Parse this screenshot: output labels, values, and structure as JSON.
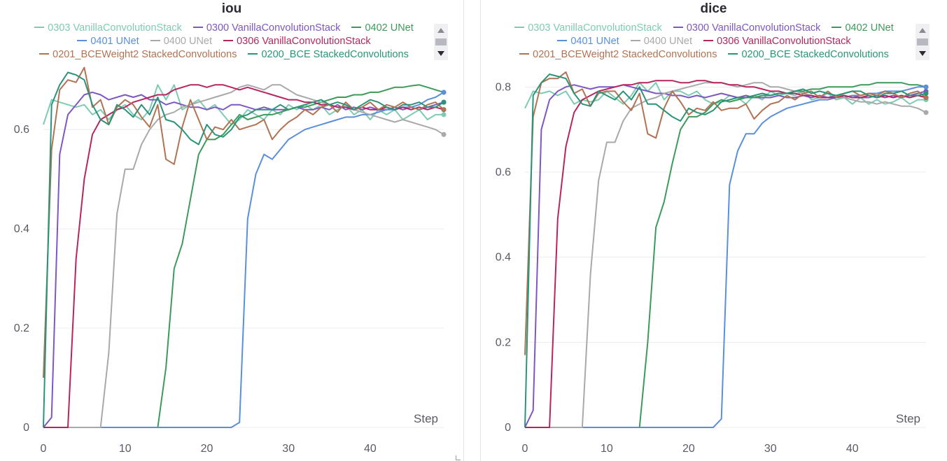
{
  "chart_data": [
    {
      "type": "line",
      "title": "iou",
      "xlabel": "Step",
      "ylabel": "",
      "xlim": [
        0,
        49
      ],
      "ylim": [
        0,
        0.72
      ],
      "xticks": [
        0,
        10,
        20,
        30,
        40
      ],
      "yticks": [
        0,
        0.2,
        0.4,
        0.6
      ],
      "grid": true,
      "legend_position": "top",
      "series": [
        {
          "name": "0303 VanillaConvolutionStack",
          "color": "#7ecbb3",
          "values": [
            0.61,
            0.66,
            0.655,
            0.65,
            0.645,
            0.65,
            0.63,
            0.64,
            0.62,
            0.64,
            0.65,
            0.63,
            0.62,
            0.64,
            0.69,
            0.66,
            0.69,
            0.64,
            0.65,
            0.66,
            0.64,
            0.65,
            0.63,
            0.61,
            0.62,
            0.64,
            0.63,
            0.62,
            0.64,
            0.63,
            0.65,
            0.64,
            0.65,
            0.64,
            0.65,
            0.63,
            0.64,
            0.65,
            0.63,
            0.64,
            0.62,
            0.64,
            0.63,
            0.64,
            0.62,
            0.63,
            0.64,
            0.62,
            0.63,
            0.63
          ]
        },
        {
          "name": "0300 VanillaConvolutionStack",
          "color": "#7e57c2",
          "values": [
            0,
            0.02,
            0.55,
            0.63,
            0.65,
            0.67,
            0.675,
            0.67,
            0.66,
            0.665,
            0.67,
            0.665,
            0.67,
            0.66,
            0.66,
            0.65,
            0.655,
            0.65,
            0.645,
            0.645,
            0.64,
            0.645,
            0.64,
            0.65,
            0.65,
            0.645,
            0.64,
            0.645,
            0.64,
            0.64,
            0.64,
            0.645,
            0.64,
            0.64,
            0.645,
            0.64,
            0.65,
            0.64,
            0.645,
            0.64,
            0.645,
            0.64,
            0.64,
            0.645,
            0.64,
            0.645,
            0.64,
            0.645,
            0.65,
            0.655
          ]
        },
        {
          "name": "0402 UNet",
          "color": "#3d9a5a",
          "values": [
            0,
            0,
            0,
            0,
            0,
            0,
            0,
            0,
            0,
            0,
            0,
            0,
            0,
            0,
            0,
            0.12,
            0.32,
            0.37,
            0.46,
            0.55,
            0.58,
            0.58,
            0.59,
            0.61,
            0.63,
            0.62,
            0.625,
            0.63,
            0.63,
            0.635,
            0.64,
            0.645,
            0.645,
            0.65,
            0.655,
            0.66,
            0.665,
            0.665,
            0.67,
            0.67,
            0.675,
            0.675,
            0.68,
            0.685,
            0.685,
            0.688,
            0.69,
            0.685,
            0.68,
            0.675
          ]
        },
        {
          "name": "0401 UNet",
          "color": "#5b8fd9",
          "values": [
            0,
            0,
            0,
            0,
            0,
            0,
            0,
            0,
            0,
            0,
            0,
            0,
            0,
            0,
            0,
            0,
            0,
            0,
            0,
            0,
            0,
            0,
            0,
            0,
            0.01,
            0.42,
            0.51,
            0.55,
            0.54,
            0.56,
            0.58,
            0.59,
            0.6,
            0.605,
            0.61,
            0.615,
            0.62,
            0.625,
            0.625,
            0.63,
            0.63,
            0.635,
            0.64,
            0.64,
            0.645,
            0.645,
            0.65,
            0.66,
            0.665,
            0.675
          ]
        },
        {
          "name": "0400 UNet",
          "color": "#a9a9a9",
          "values": [
            0,
            0,
            0,
            0,
            0,
            0,
            0,
            0,
            0.15,
            0.43,
            0.52,
            0.52,
            0.57,
            0.6,
            0.62,
            0.63,
            0.635,
            0.645,
            0.65,
            0.655,
            0.66,
            0.665,
            0.67,
            0.675,
            0.685,
            0.69,
            0.685,
            0.68,
            0.69,
            0.69,
            0.68,
            0.67,
            0.665,
            0.66,
            0.655,
            0.65,
            0.645,
            0.645,
            0.64,
            0.635,
            0.63,
            0.625,
            0.62,
            0.615,
            0.62,
            0.615,
            0.61,
            0.605,
            0.6,
            0.59
          ]
        },
        {
          "name": "0306 VanillaConvolutionStack",
          "color": "#b5265f",
          "values": [
            0,
            0,
            0,
            0,
            0.34,
            0.5,
            0.59,
            0.62,
            0.63,
            0.64,
            0.645,
            0.655,
            0.66,
            0.665,
            0.67,
            0.67,
            0.68,
            0.685,
            0.69,
            0.69,
            0.685,
            0.69,
            0.69,
            0.685,
            0.68,
            0.685,
            0.68,
            0.675,
            0.67,
            0.665,
            0.66,
            0.66,
            0.655,
            0.655,
            0.65,
            0.65,
            0.645,
            0.645,
            0.64,
            0.645,
            0.64,
            0.64,
            0.645,
            0.64,
            0.645,
            0.64,
            0.645,
            0.64,
            0.645,
            0.64
          ]
        },
        {
          "name": "0201_BCEWeight2 StackedConvolutions",
          "color": "#b07353",
          "values": [
            0.1,
            0.56,
            0.68,
            0.7,
            0.695,
            0.725,
            0.645,
            0.66,
            0.61,
            0.645,
            0.66,
            0.65,
            0.625,
            0.605,
            0.65,
            0.54,
            0.53,
            0.605,
            0.66,
            0.62,
            0.58,
            0.605,
            0.6,
            0.62,
            0.6,
            0.605,
            0.61,
            0.62,
            0.58,
            0.6,
            0.615,
            0.625,
            0.64,
            0.63,
            0.645,
            0.65,
            0.635,
            0.655,
            0.64,
            0.645,
            0.655,
            0.64,
            0.65,
            0.645,
            0.655,
            0.645,
            0.64,
            0.65,
            0.655,
            0.64
          ]
        },
        {
          "name": "0200_BCE StackedConvolutions",
          "color": "#2a9478",
          "values": [
            0,
            0.65,
            0.69,
            0.715,
            0.71,
            0.7,
            0.65,
            0.62,
            0.61,
            0.65,
            0.64,
            0.625,
            0.65,
            0.63,
            0.665,
            0.62,
            0.615,
            0.6,
            0.58,
            0.57,
            0.61,
            0.59,
            0.585,
            0.6,
            0.625,
            0.63,
            0.64,
            0.64,
            0.64,
            0.65,
            0.64,
            0.645,
            0.65,
            0.655,
            0.66,
            0.65,
            0.655,
            0.65,
            0.64,
            0.65,
            0.66,
            0.655,
            0.645,
            0.64,
            0.65,
            0.65,
            0.655,
            0.645,
            0.645,
            0.655
          ]
        }
      ]
    },
    {
      "type": "line",
      "title": "dice",
      "xlabel": "Step",
      "ylabel": "",
      "xlim": [
        0,
        49
      ],
      "ylim": [
        0,
        0.84
      ],
      "xticks": [
        0,
        10,
        20,
        30,
        40
      ],
      "yticks": [
        0,
        0.2,
        0.4,
        0.6,
        0.8
      ],
      "grid": true,
      "legend_position": "top",
      "series": [
        {
          "name": "0303 VanillaConvolutionStack",
          "color": "#7ecbb3",
          "values": [
            0.75,
            0.79,
            0.785,
            0.79,
            0.78,
            0.79,
            0.76,
            0.77,
            0.765,
            0.77,
            0.79,
            0.775,
            0.76,
            0.78,
            0.81,
            0.79,
            0.81,
            0.77,
            0.79,
            0.79,
            0.78,
            0.79,
            0.77,
            0.76,
            0.765,
            0.78,
            0.775,
            0.76,
            0.78,
            0.77,
            0.79,
            0.78,
            0.785,
            0.78,
            0.79,
            0.77,
            0.775,
            0.785,
            0.77,
            0.775,
            0.76,
            0.775,
            0.76,
            0.77,
            0.76,
            0.765,
            0.775,
            0.76,
            0.77,
            0.77
          ]
        },
        {
          "name": "0300 VanillaConvolutionStack",
          "color": "#7e57c2",
          "values": [
            0,
            0.04,
            0.7,
            0.77,
            0.79,
            0.8,
            0.805,
            0.8,
            0.795,
            0.8,
            0.8,
            0.8,
            0.805,
            0.8,
            0.795,
            0.79,
            0.785,
            0.785,
            0.78,
            0.78,
            0.775,
            0.78,
            0.775,
            0.78,
            0.785,
            0.78,
            0.775,
            0.78,
            0.775,
            0.775,
            0.775,
            0.78,
            0.775,
            0.775,
            0.78,
            0.775,
            0.78,
            0.775,
            0.78,
            0.775,
            0.78,
            0.775,
            0.775,
            0.78,
            0.775,
            0.78,
            0.775,
            0.78,
            0.785,
            0.79
          ]
        },
        {
          "name": "0402 UNet",
          "color": "#3d9a5a",
          "values": [
            0,
            0,
            0,
            0,
            0,
            0,
            0,
            0,
            0,
            0,
            0,
            0,
            0,
            0,
            0,
            0.2,
            0.47,
            0.53,
            0.62,
            0.7,
            0.73,
            0.73,
            0.74,
            0.76,
            0.77,
            0.765,
            0.77,
            0.775,
            0.775,
            0.78,
            0.78,
            0.785,
            0.785,
            0.79,
            0.79,
            0.795,
            0.795,
            0.8,
            0.8,
            0.8,
            0.8,
            0.805,
            0.805,
            0.81,
            0.81,
            0.81,
            0.81,
            0.805,
            0.805,
            0.8
          ]
        },
        {
          "name": "0401 UNet",
          "color": "#5b8fd9",
          "values": [
            0,
            0,
            0,
            0,
            0,
            0,
            0,
            0,
            0,
            0,
            0,
            0,
            0,
            0,
            0,
            0,
            0,
            0,
            0,
            0,
            0,
            0,
            0,
            0,
            0.02,
            0.57,
            0.65,
            0.69,
            0.69,
            0.715,
            0.73,
            0.74,
            0.75,
            0.755,
            0.76,
            0.765,
            0.77,
            0.77,
            0.775,
            0.775,
            0.78,
            0.78,
            0.785,
            0.785,
            0.79,
            0.79,
            0.79,
            0.795,
            0.8,
            0.8
          ]
        },
        {
          "name": "0400 UNet",
          "color": "#a9a9a9",
          "values": [
            0,
            0,
            0,
            0,
            0,
            0,
            0,
            0,
            0.36,
            0.58,
            0.67,
            0.67,
            0.72,
            0.75,
            0.76,
            0.77,
            0.775,
            0.785,
            0.79,
            0.795,
            0.8,
            0.805,
            0.81,
            0.81,
            0.81,
            0.805,
            0.8,
            0.805,
            0.81,
            0.81,
            0.8,
            0.8,
            0.795,
            0.79,
            0.785,
            0.78,
            0.775,
            0.775,
            0.775,
            0.775,
            0.77,
            0.765,
            0.765,
            0.76,
            0.765,
            0.76,
            0.755,
            0.755,
            0.75,
            0.74
          ]
        },
        {
          "name": "0306 VanillaConvolutionStack",
          "color": "#b5265f",
          "values": [
            0,
            0,
            0,
            0,
            0.49,
            0.66,
            0.74,
            0.77,
            0.78,
            0.79,
            0.795,
            0.8,
            0.805,
            0.805,
            0.81,
            0.81,
            0.815,
            0.815,
            0.815,
            0.81,
            0.81,
            0.815,
            0.815,
            0.81,
            0.81,
            0.805,
            0.805,
            0.8,
            0.8,
            0.795,
            0.79,
            0.79,
            0.785,
            0.785,
            0.78,
            0.78,
            0.775,
            0.775,
            0.775,
            0.78,
            0.775,
            0.775,
            0.78,
            0.775,
            0.78,
            0.775,
            0.78,
            0.775,
            0.78,
            0.775
          ]
        },
        {
          "name": "0201_BCEWeight2 StackedConvolutions",
          "color": "#b07353",
          "values": [
            0.17,
            0.73,
            0.81,
            0.82,
            0.82,
            0.835,
            0.785,
            0.795,
            0.755,
            0.785,
            0.79,
            0.79,
            0.765,
            0.745,
            0.785,
            0.69,
            0.68,
            0.75,
            0.79,
            0.765,
            0.735,
            0.75,
            0.745,
            0.765,
            0.745,
            0.75,
            0.75,
            0.76,
            0.725,
            0.745,
            0.76,
            0.765,
            0.78,
            0.77,
            0.785,
            0.79,
            0.775,
            0.79,
            0.775,
            0.785,
            0.79,
            0.78,
            0.785,
            0.78,
            0.79,
            0.785,
            0.775,
            0.785,
            0.79,
            0.775
          ]
        },
        {
          "name": "0200_BCE StackedConvolutions",
          "color": "#2a9478",
          "values": [
            0,
            0.78,
            0.81,
            0.83,
            0.825,
            0.82,
            0.785,
            0.76,
            0.755,
            0.79,
            0.78,
            0.77,
            0.79,
            0.77,
            0.8,
            0.76,
            0.76,
            0.745,
            0.73,
            0.72,
            0.75,
            0.74,
            0.735,
            0.745,
            0.765,
            0.77,
            0.775,
            0.775,
            0.78,
            0.785,
            0.78,
            0.785,
            0.785,
            0.79,
            0.795,
            0.785,
            0.79,
            0.785,
            0.78,
            0.785,
            0.79,
            0.79,
            0.78,
            0.775,
            0.785,
            0.785,
            0.79,
            0.78,
            0.78,
            0.785
          ]
        }
      ]
    }
  ]
}
